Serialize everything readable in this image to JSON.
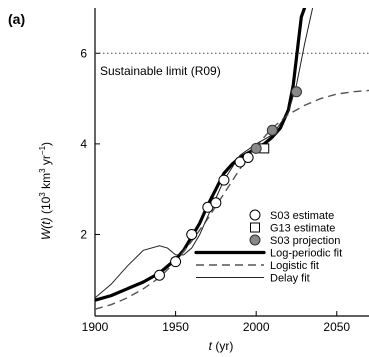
{
  "panel_label": "(a)",
  "chart_data": {
    "type": "scatter",
    "xlabel_main": "t",
    "xlabel_unit": " (yr)",
    "ylabel_main": "W(t)",
    "ylabel_unit_pre": " (10",
    "ylabel_unit_exp1": "3",
    "ylabel_unit_mid": " km",
    "ylabel_unit_exp2": "3",
    "ylabel_unit_mid2": " yr",
    "ylabel_unit_exp3": "−1",
    "ylabel_unit_post": ")",
    "xlim": [
      1900,
      2070
    ],
    "ylim": [
      0.2,
      7.0
    ],
    "x_ticks": [
      1900,
      1950,
      2000,
      2050
    ],
    "y_ticks": [
      2,
      4,
      6
    ],
    "x_tick_labels": [
      "1900",
      "1950",
      "2000",
      "2050"
    ],
    "y_tick_labels": [
      "2",
      "4",
      "6"
    ],
    "reference_line": {
      "y": 6,
      "label": "Sustainable limit (R09)"
    },
    "series": [
      {
        "name": "S03 estimate",
        "kind": "open-circle",
        "x": [
          1940,
          1950,
          1960,
          1970,
          1975,
          1980,
          1990,
          1995
        ],
        "y": [
          1.1,
          1.4,
          2.0,
          2.6,
          2.7,
          3.2,
          3.6,
          3.7
        ]
      },
      {
        "name": "G13 estimate",
        "kind": "open-square",
        "x": [
          2005
        ],
        "y": [
          3.9
        ]
      },
      {
        "name": "S03 projection",
        "kind": "filled-circle",
        "x": [
          2000,
          2010,
          2025
        ],
        "y": [
          3.9,
          4.3,
          5.15
        ]
      },
      {
        "name": "Log-periodic fit",
        "kind": "thick-line",
        "x": [
          1900,
          1910,
          1920,
          1930,
          1940,
          1950,
          1955,
          1960,
          1965,
          1970,
          1975,
          1980,
          1985,
          1990,
          1995,
          2000,
          2005,
          2010,
          2015,
          2020,
          2023,
          2026,
          2028,
          2030
        ],
        "y": [
          0.55,
          0.65,
          0.8,
          0.95,
          1.15,
          1.45,
          1.65,
          1.95,
          2.25,
          2.65,
          3.0,
          3.35,
          3.55,
          3.7,
          3.8,
          3.9,
          4.0,
          4.15,
          4.35,
          4.75,
          5.3,
          6.2,
          6.8,
          7.0
        ]
      },
      {
        "name": "Logistic fit",
        "kind": "dashed-line",
        "x": [
          1900,
          1910,
          1920,
          1930,
          1940,
          1950,
          1960,
          1970,
          1980,
          1990,
          2000,
          2010,
          2020,
          2030,
          2040,
          2050,
          2060,
          2070
        ],
        "y": [
          0.35,
          0.45,
          0.6,
          0.8,
          1.05,
          1.4,
          1.85,
          2.35,
          2.9,
          3.45,
          3.95,
          4.35,
          4.65,
          4.85,
          5.0,
          5.1,
          5.15,
          5.18
        ]
      },
      {
        "name": "Delay fit",
        "kind": "thin-line",
        "x": [
          1900,
          1910,
          1920,
          1930,
          1940,
          1945,
          1950,
          1955,
          1960,
          1965,
          1970,
          1980,
          1990,
          2000,
          2010,
          2020,
          2025,
          2030,
          2035
        ],
        "y": [
          0.6,
          0.9,
          1.3,
          1.65,
          1.75,
          1.7,
          1.55,
          1.55,
          1.7,
          2.0,
          2.4,
          3.2,
          3.75,
          4.0,
          4.2,
          4.7,
          5.3,
          6.2,
          7.0
        ]
      }
    ]
  }
}
